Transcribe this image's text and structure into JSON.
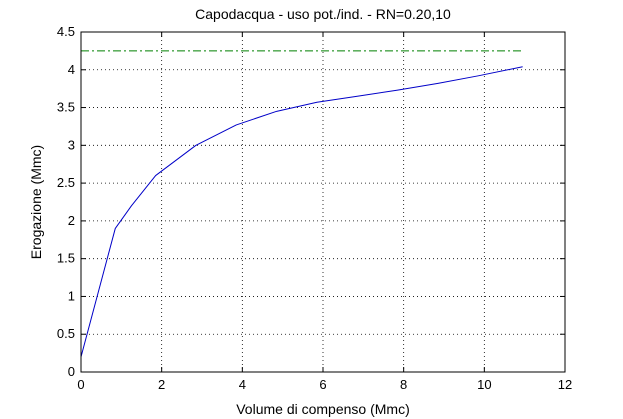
{
  "chart_data": {
    "type": "line",
    "title": "Capodacqua  -  uso pot./ind.  -   RN=0.20,10",
    "xlabel": "Volume di compenso (Mmc)",
    "ylabel": "Erogazione (Mmc)",
    "xlim": [
      0,
      12
    ],
    "ylim": [
      0,
      4.5
    ],
    "xticks": [
      0,
      2,
      4,
      6,
      8,
      10,
      12
    ],
    "yticks": [
      0,
      0.5,
      1,
      1.5,
      2,
      2.5,
      3,
      3.5,
      4,
      4.5
    ],
    "grid": true,
    "series": [
      {
        "style": "solid",
        "color": "#0000c8",
        "x": [
          0,
          0.85,
          1.25,
          1.85,
          2.85,
          3.85,
          4.85,
          5.85,
          6.85,
          7.85,
          8.85,
          9.85,
          10.95
        ],
        "y": [
          0.2,
          1.9,
          2.2,
          2.6,
          3.0,
          3.27,
          3.45,
          3.57,
          3.65,
          3.73,
          3.82,
          3.92,
          4.04
        ]
      },
      {
        "style": "dash-dot",
        "color": "#008000",
        "x": [
          0,
          10.95
        ],
        "y": [
          4.25,
          4.25
        ]
      }
    ]
  }
}
